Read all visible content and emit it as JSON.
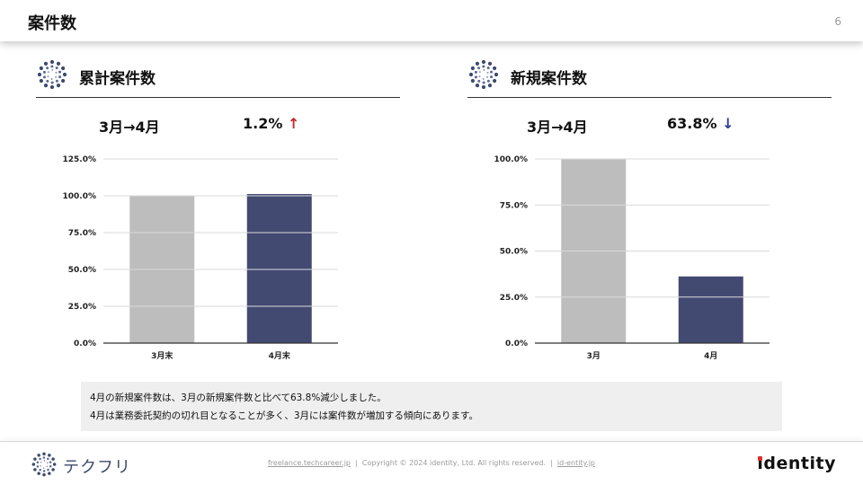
{
  "header": {
    "title": "案件数",
    "page_number": "6"
  },
  "left_panel": {
    "title": "累計案件数",
    "period": "3月→4月",
    "change": "1.2%",
    "change_arrow": "↑",
    "logo_icon": "dotted-ring-logo-icon"
  },
  "right_panel": {
    "title": "新規案件数",
    "period": "3月→4月",
    "change": "63.8%",
    "change_arrow": "↓",
    "logo_icon": "dotted-ring-logo-icon"
  },
  "chart_data": [
    {
      "type": "bar",
      "categories": [
        "3月末",
        "4月末"
      ],
      "values": [
        100.0,
        101.2
      ],
      "ylim": [
        0,
        125
      ],
      "yticks": [
        "0.0%",
        "25.0%",
        "50.0%",
        "75.0%",
        "100.0%",
        "125.0%"
      ],
      "colors": [
        "#bdbdbd",
        "#424a72"
      ],
      "grid": true
    },
    {
      "type": "bar",
      "categories": [
        "3月",
        "4月"
      ],
      "values": [
        100.0,
        36.2
      ],
      "ylim": [
        0,
        100
      ],
      "yticks": [
        "0.0%",
        "25.0%",
        "50.0%",
        "75.0%",
        "100.0%"
      ],
      "colors": [
        "#bdbdbd",
        "#424a72"
      ],
      "grid": true
    }
  ],
  "note": {
    "line1": "4月の新規案件数は、3月の新規案件数と比べて63.8%減少しました。",
    "line2": "4月は業務委託契約の切れ目となることが多く、3月には案件数が増加する傾向にあります。"
  },
  "footer": {
    "brand_name": "テクフリ",
    "link1": "freelance.techcareer.jp",
    "separator": "|",
    "copyright": "Copyright © 2024 identity, Ltd. All rights reserved.",
    "link2": "id-entity.jp",
    "company_logo": "identity"
  },
  "colors": {
    "accent_up": "#c8232c",
    "accent_down": "#2b3a9e",
    "bar_prev": "#bdbdbd",
    "bar_curr": "#424a72"
  }
}
